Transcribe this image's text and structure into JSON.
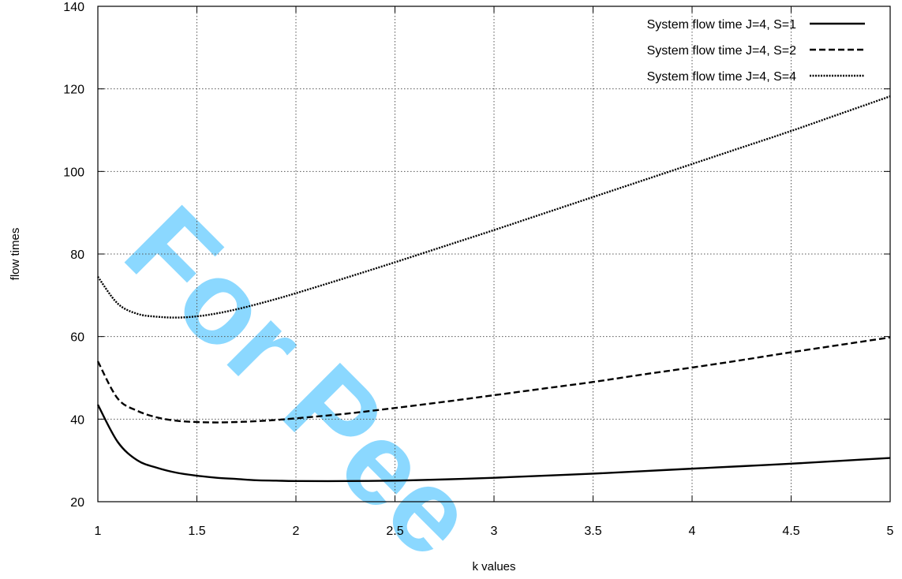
{
  "chart_data": {
    "type": "line",
    "xlabel": "k values",
    "ylabel": "flow times",
    "xlim": [
      1,
      5
    ],
    "ylim": [
      20,
      140
    ],
    "xticks": [
      "1",
      "1.5",
      "2",
      "2.5",
      "3",
      "3.5",
      "4",
      "4.5",
      "5"
    ],
    "yticks": [
      "20",
      "40",
      "60",
      "80",
      "100",
      "120",
      "140"
    ],
    "grid": true,
    "legend_position": "top-right",
    "x": [
      1.0,
      1.1,
      1.2,
      1.3,
      1.4,
      1.5,
      1.6,
      1.7,
      1.8,
      1.9,
      2.0,
      2.25,
      2.5,
      2.75,
      3.0,
      3.25,
      3.5,
      3.75,
      4.0,
      4.25,
      4.5,
      4.75,
      5.0
    ],
    "series": [
      {
        "name": "System flow time J=4, S=1",
        "dash": "solid",
        "values": [
          43.5,
          34.5,
          30.0,
          28.2,
          27.0,
          26.3,
          25.8,
          25.5,
          25.2,
          25.1,
          25.0,
          25.0,
          25.1,
          25.4,
          25.8,
          26.3,
          26.8,
          27.4,
          28.0,
          28.6,
          29.2,
          29.9,
          30.6
        ]
      },
      {
        "name": "System flow time J=4, S=2",
        "dash": "dashed",
        "values": [
          54.0,
          45.0,
          42.0,
          40.4,
          39.6,
          39.3,
          39.2,
          39.3,
          39.5,
          39.8,
          40.2,
          41.3,
          42.7,
          44.2,
          45.8,
          47.4,
          49.0,
          50.8,
          52.5,
          54.3,
          56.2,
          58.0,
          59.8
        ]
      },
      {
        "name": "System flow time J=4, S=4",
        "dash": "dotted",
        "values": [
          74.5,
          68.0,
          65.5,
          64.8,
          64.6,
          64.9,
          65.6,
          66.6,
          67.8,
          69.1,
          70.5,
          74.2,
          78.0,
          81.9,
          85.8,
          89.8,
          93.8,
          97.8,
          101.8,
          105.8,
          109.8,
          114.0,
          118.2
        ]
      }
    ]
  },
  "watermark": {
    "text": "For Pee",
    "color": "#00aaff"
  }
}
